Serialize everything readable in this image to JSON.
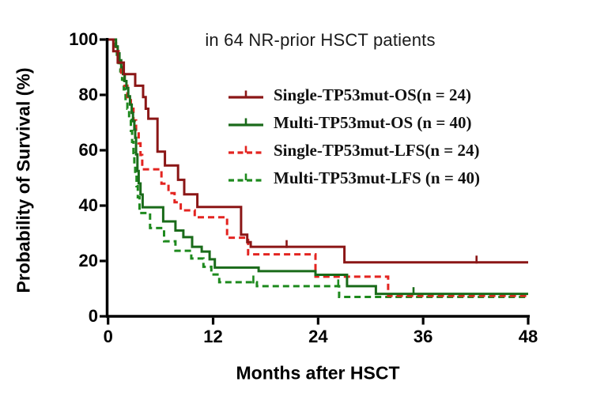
{
  "chart_data": {
    "type": "line",
    "subtype": "kaplan-meier-survival-steps",
    "title": "in 64 NR-prior HSCT patients",
    "xlabel": "Months after HSCT",
    "ylabel": "Probability of Survival (%)",
    "xlim": [
      0,
      48
    ],
    "ylim": [
      0,
      100
    ],
    "x_ticks": [
      0,
      12,
      24,
      36,
      48
    ],
    "y_ticks": [
      0,
      20,
      40,
      60,
      80,
      100
    ],
    "grid": false,
    "legend_position": "upper-right-inside",
    "axis_color": "#000000",
    "series": [
      {
        "name": "Multi-TP53mut-LFS (n = 40)",
        "id": "multi-tp53mut-lfs",
        "n": 40,
        "color": "#1E8A1E",
        "line_style": "dashed",
        "steps": [
          [
            0,
            100
          ],
          [
            0.8,
            97.5
          ],
          [
            1.0,
            94.5
          ],
          [
            1.2,
            91.5
          ],
          [
            1.4,
            88.5
          ],
          [
            1.6,
            85.5
          ],
          [
            1.8,
            82
          ],
          [
            2.0,
            78.5
          ],
          [
            2.2,
            75
          ],
          [
            2.4,
            71
          ],
          [
            2.6,
            67
          ],
          [
            2.75,
            63
          ],
          [
            2.9,
            59
          ],
          [
            3.0,
            55
          ],
          [
            3.1,
            51
          ],
          [
            3.25,
            47
          ],
          [
            3.4,
            43
          ],
          [
            3.6,
            37.3
          ],
          [
            4.8,
            31.9
          ],
          [
            6.4,
            27.1
          ],
          [
            7.7,
            23.7
          ],
          [
            9.5,
            20.9
          ],
          [
            10.9,
            17.9
          ],
          [
            11.8,
            15.1
          ],
          [
            12.7,
            12.3
          ],
          [
            17.0,
            10.9
          ],
          [
            26.4,
            7.0
          ],
          [
            48,
            7.0
          ]
        ],
        "censor_marks": [
          16.6,
          26.3
        ]
      },
      {
        "name": "Single-TP53mut-LFS(n = 24)",
        "id": "single-tp53mut-lfs",
        "n": 24,
        "color": "#E32420",
        "line_style": "dashed",
        "steps": [
          [
            0,
            100
          ],
          [
            0.9,
            95.8
          ],
          [
            1.2,
            91.7
          ],
          [
            1.5,
            87.5
          ],
          [
            1.9,
            83.3
          ],
          [
            2.2,
            79.2
          ],
          [
            2.6,
            75
          ],
          [
            2.9,
            70.8
          ],
          [
            3.2,
            66.7
          ],
          [
            3.5,
            62.5
          ],
          [
            3.7,
            58.3
          ],
          [
            3.9,
            53.1
          ],
          [
            6.1,
            47.9
          ],
          [
            6.9,
            44.5
          ],
          [
            7.6,
            41.2
          ],
          [
            8.3,
            38.3
          ],
          [
            9.9,
            35.8
          ],
          [
            13.6,
            28.4
          ],
          [
            16.0,
            22.4
          ],
          [
            23.7,
            14.3
          ],
          [
            32.0,
            7.4
          ],
          [
            48,
            7.4
          ]
        ],
        "censor_marks": []
      },
      {
        "name": "Multi-TP53mut-OS (n = 40)",
        "id": "multi-tp53mut-os",
        "n": 40,
        "color": "#1A6B1A",
        "line_style": "solid",
        "steps": [
          [
            0,
            100
          ],
          [
            0.9,
            97.5
          ],
          [
            1.1,
            95
          ],
          [
            1.3,
            92.5
          ],
          [
            1.5,
            90
          ],
          [
            1.7,
            87.5
          ],
          [
            1.9,
            85
          ],
          [
            2.1,
            82.5
          ],
          [
            2.3,
            79.5
          ],
          [
            2.5,
            76.5
          ],
          [
            2.7,
            73.5
          ],
          [
            2.85,
            70.5
          ],
          [
            3.0,
            67.5
          ],
          [
            3.1,
            64.5
          ],
          [
            3.2,
            58.5
          ],
          [
            3.35,
            52.5
          ],
          [
            3.5,
            48
          ],
          [
            3.7,
            44
          ],
          [
            3.95,
            39.4
          ],
          [
            6.3,
            34.3
          ],
          [
            7.7,
            31
          ],
          [
            8.6,
            28.6
          ],
          [
            9.6,
            25.1
          ],
          [
            10.7,
            23.4
          ],
          [
            11.6,
            20.6
          ],
          [
            12.2,
            17.6
          ],
          [
            17.2,
            16.3
          ],
          [
            23.7,
            15.0
          ],
          [
            27.3,
            10.9
          ],
          [
            30.6,
            8.1
          ],
          [
            48,
            8.1
          ]
        ],
        "censor_marks": [
          34.9
        ]
      },
      {
        "name": "Single-TP53mut-OS(n = 24)",
        "id": "single-tp53mut-os",
        "n": 24,
        "color": "#8B1616",
        "line_style": "solid",
        "steps": [
          [
            0,
            100
          ],
          [
            0.6,
            95.8
          ],
          [
            1.1,
            91.7
          ],
          [
            1.8,
            87.5
          ],
          [
            3.1,
            83.3
          ],
          [
            4.0,
            79.2
          ],
          [
            4.3,
            75
          ],
          [
            4.6,
            71.4
          ],
          [
            5.65,
            59.5
          ],
          [
            6.5,
            54.5
          ],
          [
            8.0,
            49.3
          ],
          [
            8.7,
            44.1
          ],
          [
            10.2,
            39.5
          ],
          [
            15.2,
            29.5
          ],
          [
            15.9,
            26.8
          ],
          [
            16.3,
            25.1
          ],
          [
            27.0,
            19.5
          ],
          [
            48,
            19.5
          ]
        ],
        "censor_marks": [
          20.4,
          42.1
        ]
      }
    ],
    "legend_order": [
      3,
      2,
      1,
      0
    ]
  }
}
